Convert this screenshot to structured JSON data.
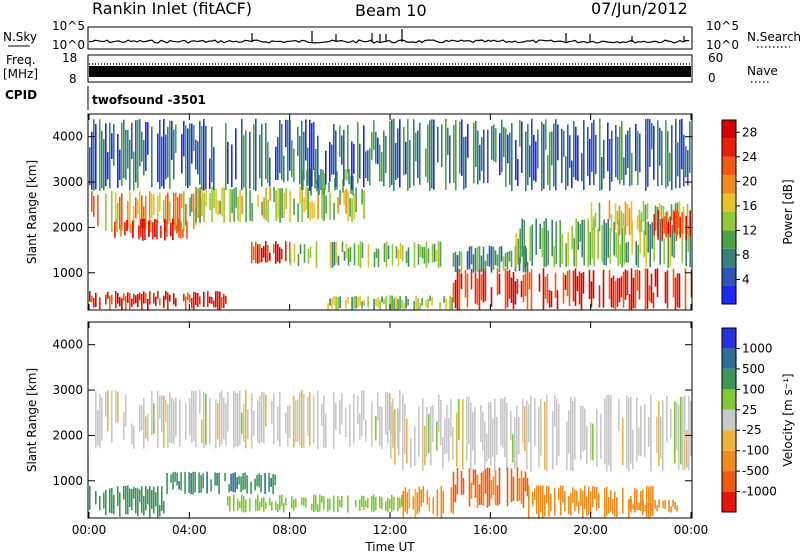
{
  "header": {
    "station": "Rankin Inlet (fitACF)",
    "beam": "Beam 10",
    "date": "07/Jun/2012"
  },
  "aux_panels": {
    "nsky": {
      "label": "N.Sky",
      "ticks": [
        "10^5",
        "10^0"
      ]
    },
    "nsearch": {
      "label": "N.Search",
      "ticks": [
        "10^5",
        "10^0"
      ]
    },
    "freq": {
      "label_top": "Freq.",
      "label_bottom": "[MHz]",
      "ticks": [
        "18",
        "8"
      ]
    },
    "nave": {
      "label": "Nave",
      "ticks": [
        "60",
        "0"
      ]
    },
    "cpid": {
      "label": "CPID",
      "value": "twofsound  -3501"
    }
  },
  "chart_data": [
    {
      "type": "heatmap",
      "variable": "power",
      "ylabel": "Slant Range [km]",
      "xlabel": "",
      "x_ticks": [
        "00:00",
        "04:00",
        "08:00",
        "12:00",
        "16:00",
        "20:00",
        "00:00"
      ],
      "x_range_hours": [
        0,
        24
      ],
      "y_ticks": [
        1000,
        2000,
        3000,
        4000
      ],
      "ylim": [
        180,
        4500
      ],
      "colorbar": {
        "label": "Power [dB]",
        "ticks": [
          "4",
          "8",
          "12",
          "16",
          "20",
          "24",
          "28"
        ],
        "range": [
          0,
          30
        ],
        "colors": [
          "#1e28f0",
          "#2f55b4",
          "#3a7f7a",
          "#4ea04a",
          "#93c83a",
          "#e6c32a",
          "#f08c1e",
          "#f05a14",
          "#e61e0a",
          "#d70000"
        ]
      },
      "regions": [
        {
          "t0": 0.0,
          "t1": 5.5,
          "r0": 180,
          "r1": 600,
          "level": 26
        },
        {
          "t0": 0.0,
          "t1": 4.5,
          "r0": 1900,
          "r1": 2800,
          "level": 19
        },
        {
          "t0": 1.0,
          "t1": 4.0,
          "r0": 1700,
          "r1": 2200,
          "level": 24
        },
        {
          "t0": 4.0,
          "t1": 11.0,
          "r0": 2100,
          "r1": 2900,
          "level": 14
        },
        {
          "t0": 6.3,
          "t1": 8.0,
          "r0": 1200,
          "r1": 1700,
          "level": 27
        },
        {
          "t0": 8.0,
          "t1": 14.0,
          "r0": 1100,
          "r1": 1700,
          "level": 12
        },
        {
          "t0": 8.5,
          "t1": 10.5,
          "r0": 2700,
          "r1": 3300,
          "level": 11
        },
        {
          "t0": 9.5,
          "t1": 14.5,
          "r0": 180,
          "r1": 500,
          "level": 13
        },
        {
          "t0": 14.5,
          "t1": 24.0,
          "r0": 180,
          "r1": 1100,
          "level": 26
        },
        {
          "t0": 14.5,
          "t1": 17.5,
          "r0": 1000,
          "r1": 1600,
          "level": 9
        },
        {
          "t0": 17.0,
          "t1": 24.0,
          "r0": 1100,
          "r1": 2200,
          "level": 11
        },
        {
          "t0": 20.0,
          "t1": 24.0,
          "r0": 1800,
          "r1": 2600,
          "level": 15
        },
        {
          "t0": 22.5,
          "t1": 24.0,
          "r0": 1700,
          "r1": 2400,
          "level": 24
        },
        {
          "t0": 0.0,
          "t1": 24.0,
          "r0": 2800,
          "r1": 4400,
          "level": 6
        }
      ]
    },
    {
      "type": "heatmap",
      "variable": "velocity",
      "ylabel": "Slant Range [km]",
      "xlabel": "Time UT",
      "x_ticks": [
        "00:00",
        "04:00",
        "08:00",
        "12:00",
        "16:00",
        "20:00",
        "00:00"
      ],
      "x_range_hours": [
        0,
        24
      ],
      "y_ticks": [
        1000,
        2000,
        3000,
        4000
      ],
      "ylim": [
        180,
        4500
      ],
      "colorbar": {
        "label": "Velocity [m s⁻¹]",
        "ticks": [
          "1000",
          "500",
          "100",
          "25",
          "-25",
          "-100",
          "-500",
          "-1000"
        ],
        "range": [
          -1200,
          1200
        ],
        "colors": [
          "#e6140a",
          "#f05a14",
          "#f08c1e",
          "#f0b43c",
          "#c8c8c8",
          "#7ec83a",
          "#3c965a",
          "#2f6e96",
          "#2832dc"
        ]
      },
      "regions": [
        {
          "t0": 0.0,
          "t1": 12.5,
          "r0": 1700,
          "r1": 3000,
          "level": 0
        },
        {
          "t0": 12.0,
          "t1": 24.0,
          "r0": 1200,
          "r1": 2900,
          "level": 0
        },
        {
          "t0": 0.0,
          "t1": 3.0,
          "r0": 180,
          "r1": 900,
          "level": 300
        },
        {
          "t0": 3.0,
          "t1": 7.5,
          "r0": 700,
          "r1": 1200,
          "level": 400
        },
        {
          "t0": 5.5,
          "t1": 12.5,
          "r0": 300,
          "r1": 700,
          "level": 60
        },
        {
          "t0": 12.5,
          "t1": 14.5,
          "r0": 180,
          "r1": 900,
          "level": -150
        },
        {
          "t0": 14.5,
          "t1": 17.5,
          "r0": 400,
          "r1": 1300,
          "level": -700
        },
        {
          "t0": 17.5,
          "t1": 22.5,
          "r0": 180,
          "r1": 900,
          "level": -200
        },
        {
          "t0": 21.5,
          "t1": 23.5,
          "r0": 300,
          "r1": 600,
          "level": -300
        }
      ]
    }
  ]
}
